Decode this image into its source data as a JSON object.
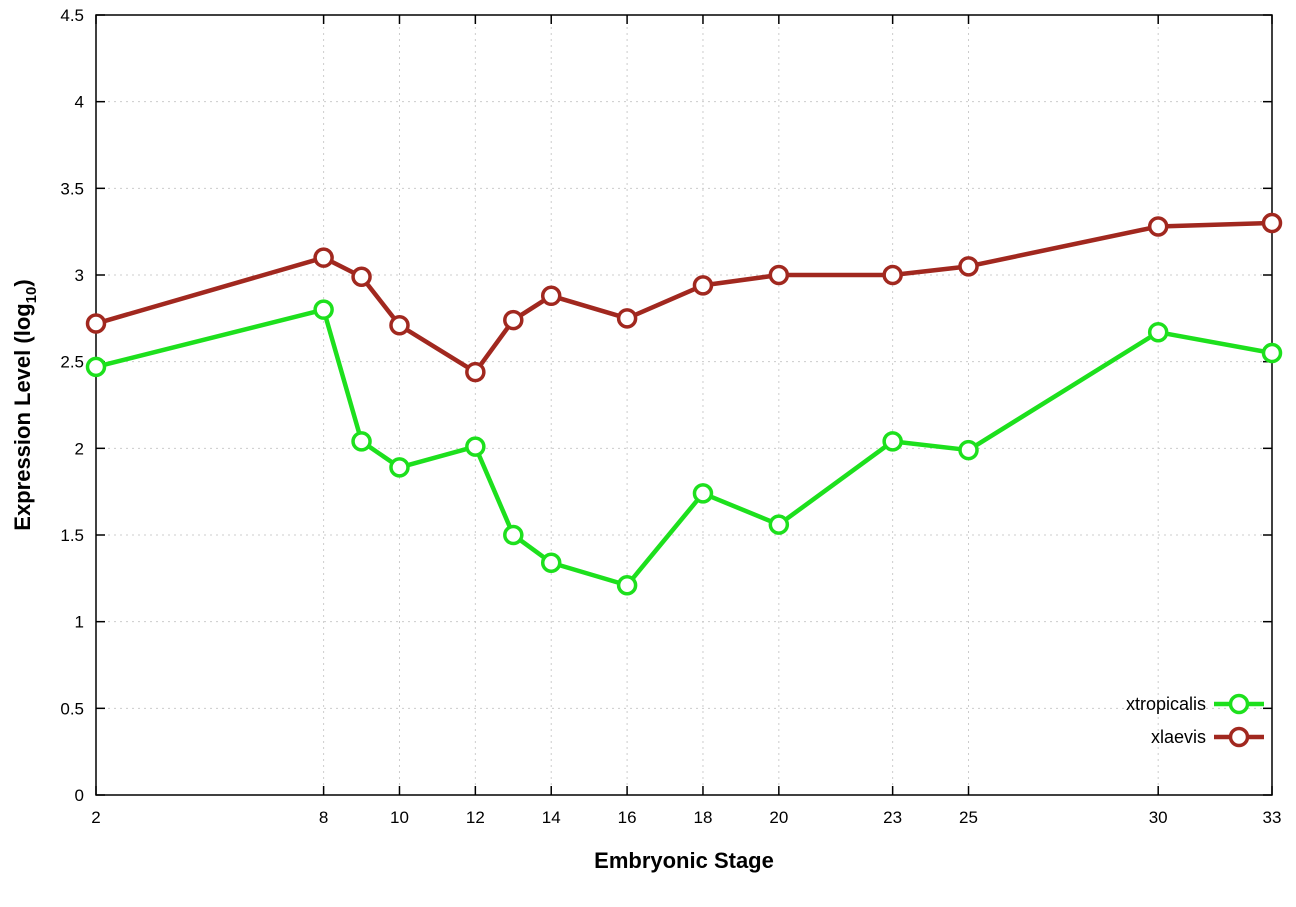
{
  "chart_data": {
    "type": "line",
    "x": [
      2,
      8,
      9,
      10,
      12,
      13,
      14,
      16,
      18,
      20,
      23,
      25,
      30,
      33
    ],
    "series": [
      {
        "name": "xtropicalis",
        "color": "#1de01d",
        "values": [
          2.47,
          2.8,
          2.04,
          1.89,
          2.01,
          1.5,
          1.34,
          1.21,
          1.74,
          1.56,
          2.04,
          1.99,
          2.67,
          2.55
        ]
      },
      {
        "name": "xlaevis",
        "color": "#a1281f",
        "values": [
          2.72,
          3.1,
          2.99,
          2.71,
          2.44,
          2.74,
          2.88,
          2.75,
          2.94,
          3.0,
          3.0,
          3.05,
          3.28,
          3.3
        ]
      }
    ],
    "xlabel": "Embryonic Stage",
    "ylabel_main": "Expression Level (log",
    "ylabel_sub": "10",
    "ylabel_close": ")",
    "xlim": [
      2,
      33
    ],
    "ylim": [
      0,
      4.5
    ],
    "xticks": [
      2,
      8,
      10,
      12,
      14,
      16,
      18,
      20,
      23,
      25,
      30,
      33
    ],
    "xtick_labels": [
      "2",
      "8",
      "10",
      "12",
      "14",
      "16",
      "18",
      "20",
      "23",
      "25",
      "30",
      "33"
    ],
    "yticks": [
      0,
      0.5,
      1,
      1.5,
      2,
      2.5,
      3,
      3.5,
      4,
      4.5
    ],
    "ytick_labels": [
      "0",
      "0.5",
      "1",
      "1.5",
      "2",
      "2.5",
      "3",
      "3.5",
      "4",
      "4.5"
    ],
    "grid": true,
    "legend_position": "inside-bottom-right",
    "legend_entries": [
      "xtropicalis",
      "xlaevis"
    ],
    "background": "#ffffff",
    "axis_color": "#000000",
    "grid_color": "#cccccc",
    "marker": "open-circle"
  }
}
